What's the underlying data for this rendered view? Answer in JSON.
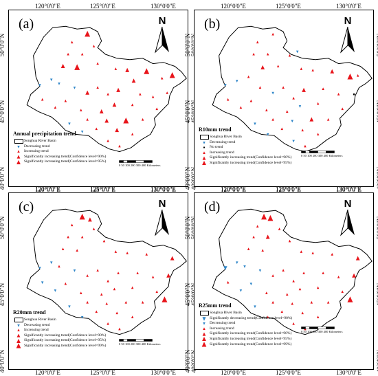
{
  "coords": {
    "top": [
      "120°0'0\"E",
      "125°0'0\"E",
      "130°0'0\"E"
    ],
    "bottom": [
      "120°0'0\"E",
      "125°0'0\"E",
      "130°0'0\"E"
    ],
    "lat": [
      "50°0'0\"N",
      "45°0'0\"N",
      "40°0'0\"N"
    ]
  },
  "north_letter": "N",
  "colors": {
    "increase": "#e8151b",
    "decrease": "#2f86c9",
    "basin_fill": "#ffffff",
    "basin_line": "#000000"
  },
  "scalebar": {
    "ticks": [
      "0",
      "50",
      "100",
      "200",
      "300",
      "400"
    ],
    "unit": "Kilometers"
  },
  "panels": [
    {
      "label": "(a)",
      "legend_title": "Annual precipitation trend",
      "legend": [
        {
          "symbol": "basin",
          "text": "Songhua River Basin"
        },
        {
          "symbol": "dec-small",
          "text": "Decreasing trend"
        },
        {
          "symbol": "inc-small",
          "text": "Increasing trend"
        },
        {
          "symbol": "inc-mid",
          "text": "Significantly increasing trend(Confidence level=90%)"
        },
        {
          "symbol": "inc-large",
          "text": "Significantly increasing trend(Confidence level=95%)"
        }
      ],
      "stations": [
        {
          "x": 125.3,
          "y": 50.8,
          "t": "i3"
        },
        {
          "x": 124.1,
          "y": 50.2,
          "t": "i1"
        },
        {
          "x": 125.8,
          "y": 49.9,
          "t": "i1"
        },
        {
          "x": 123.8,
          "y": 49.3,
          "t": "i1"
        },
        {
          "x": 124.9,
          "y": 49.3,
          "t": "i1"
        },
        {
          "x": 123.4,
          "y": 48.4,
          "t": "i2"
        },
        {
          "x": 124.5,
          "y": 48.3,
          "t": "i3"
        },
        {
          "x": 126.1,
          "y": 48.6,
          "t": "i1"
        },
        {
          "x": 127.5,
          "y": 48.2,
          "t": "i1"
        },
        {
          "x": 128.4,
          "y": 48.1,
          "t": "i2"
        },
        {
          "x": 129.9,
          "y": 48.0,
          "t": "i3"
        },
        {
          "x": 128.9,
          "y": 47.3,
          "t": "i2"
        },
        {
          "x": 131.1,
          "y": 47.5,
          "t": "i1"
        },
        {
          "x": 131.9,
          "y": 47.7,
          "t": "i3"
        },
        {
          "x": 122.5,
          "y": 47.4,
          "t": "d1"
        },
        {
          "x": 121.6,
          "y": 47.0,
          "t": "d1"
        },
        {
          "x": 123.1,
          "y": 47.1,
          "t": "d1"
        },
        {
          "x": 124.3,
          "y": 46.8,
          "t": "d1"
        },
        {
          "x": 126.1,
          "y": 46.8,
          "t": "i1"
        },
        {
          "x": 125.3,
          "y": 46.4,
          "t": "i2"
        },
        {
          "x": 126.9,
          "y": 46.3,
          "t": "i1"
        },
        {
          "x": 127.7,
          "y": 46.6,
          "t": "i2"
        },
        {
          "x": 129.4,
          "y": 46.3,
          "t": "i1"
        },
        {
          "x": 130.4,
          "y": 46.1,
          "t": "i1"
        },
        {
          "x": 131.5,
          "y": 46.4,
          "t": "i1"
        },
        {
          "x": 121.8,
          "y": 45.9,
          "t": "i1"
        },
        {
          "x": 123.6,
          "y": 45.8,
          "t": "i1"
        },
        {
          "x": 127.4,
          "y": 45.5,
          "t": "i2"
        },
        {
          "x": 128.8,
          "y": 45.5,
          "t": "i1"
        },
        {
          "x": 130.7,
          "y": 45.2,
          "t": "i1"
        },
        {
          "x": 124.8,
          "y": 45.1,
          "t": "i1"
        },
        {
          "x": 126.4,
          "y": 45.0,
          "t": "i2"
        },
        {
          "x": 122.8,
          "y": 45.3,
          "t": "i1"
        },
        {
          "x": 125.3,
          "y": 44.4,
          "t": "i1"
        },
        {
          "x": 126.8,
          "y": 44.3,
          "t": "i2"
        },
        {
          "x": 128.3,
          "y": 44.3,
          "t": "i3"
        },
        {
          "x": 129.6,
          "y": 44.4,
          "t": "i1"
        },
        {
          "x": 123.9,
          "y": 44.1,
          "t": "d1"
        },
        {
          "x": 126.0,
          "y": 43.7,
          "t": "i1"
        },
        {
          "x": 127.6,
          "y": 43.6,
          "t": "i2"
        },
        {
          "x": 124.9,
          "y": 43.5,
          "t": "d1"
        },
        {
          "x": 128.8,
          "y": 43.3,
          "t": "i1"
        },
        {
          "x": 126.9,
          "y": 42.8,
          "t": "i1"
        },
        {
          "x": 127.8,
          "y": 42.4,
          "t": "i1"
        }
      ]
    },
    {
      "label": "(b)",
      "legend_title": "R10mm trend",
      "legend": [
        {
          "symbol": "basin",
          "text": "Songhua River Basin"
        },
        {
          "symbol": "dec-small",
          "text": "Decreasing trend"
        },
        {
          "symbol": "none",
          "text": "No trend"
        },
        {
          "symbol": "inc-small",
          "text": "Increasing trend"
        },
        {
          "symbol": "inc-mid",
          "text": "Significantly increasing trend(Confidence level=90%)"
        },
        {
          "symbol": "inc-large",
          "text": "Significantly increasing trend(Confidence level=95%)"
        }
      ],
      "stations": [
        {
          "x": 125.3,
          "y": 50.8,
          "t": "i1"
        },
        {
          "x": 124.1,
          "y": 50.2,
          "t": "i1"
        },
        {
          "x": 127.2,
          "y": 49.5,
          "t": "d1"
        },
        {
          "x": 123.8,
          "y": 49.3,
          "t": "i1"
        },
        {
          "x": 124.9,
          "y": 49.3,
          "t": "i1"
        },
        {
          "x": 126.6,
          "y": 49.2,
          "t": "i1"
        },
        {
          "x": 124.5,
          "y": 48.3,
          "t": "i2"
        },
        {
          "x": 125.7,
          "y": 48.4,
          "t": "i1"
        },
        {
          "x": 127.5,
          "y": 48.2,
          "t": "i1"
        },
        {
          "x": 128.4,
          "y": 48.1,
          "t": "i1"
        },
        {
          "x": 129.9,
          "y": 48.0,
          "t": "i2"
        },
        {
          "x": 131.3,
          "y": 47.6,
          "t": "i3"
        },
        {
          "x": 131.9,
          "y": 47.7,
          "t": "i1"
        },
        {
          "x": 123.4,
          "y": 47.6,
          "t": "i1"
        },
        {
          "x": 121.6,
          "y": 47.0,
          "t": "d1"
        },
        {
          "x": 122.5,
          "y": 47.3,
          "t": "d1"
        },
        {
          "x": 124.3,
          "y": 46.8,
          "t": "i1"
        },
        {
          "x": 126.1,
          "y": 46.8,
          "t": "i1"
        },
        {
          "x": 127.7,
          "y": 46.6,
          "t": "i2"
        },
        {
          "x": 129.2,
          "y": 46.7,
          "t": "i1"
        },
        {
          "x": 130.4,
          "y": 46.3,
          "t": "i1"
        },
        {
          "x": 131.6,
          "y": 46.3,
          "t": "n"
        },
        {
          "x": 125.3,
          "y": 46.4,
          "t": "d1"
        },
        {
          "x": 126.9,
          "y": 46.0,
          "t": "i1"
        },
        {
          "x": 123.6,
          "y": 45.8,
          "t": "i1"
        },
        {
          "x": 121.8,
          "y": 45.9,
          "t": "i1"
        },
        {
          "x": 128.8,
          "y": 45.6,
          "t": "i1"
        },
        {
          "x": 127.4,
          "y": 45.4,
          "t": "d1"
        },
        {
          "x": 126.4,
          "y": 45.0,
          "t": "i1"
        },
        {
          "x": 124.8,
          "y": 45.1,
          "t": "i1"
        },
        {
          "x": 130.7,
          "y": 45.2,
          "t": "i1"
        },
        {
          "x": 122.8,
          "y": 45.3,
          "t": "i1"
        },
        {
          "x": 128.3,
          "y": 44.4,
          "t": "i2"
        },
        {
          "x": 125.3,
          "y": 44.4,
          "t": "i1"
        },
        {
          "x": 126.8,
          "y": 44.3,
          "t": "d1"
        },
        {
          "x": 129.6,
          "y": 44.4,
          "t": "i1"
        },
        {
          "x": 123.9,
          "y": 44.1,
          "t": "d1"
        },
        {
          "x": 127.6,
          "y": 43.6,
          "t": "i1"
        },
        {
          "x": 126.0,
          "y": 43.7,
          "t": "i1"
        },
        {
          "x": 128.8,
          "y": 43.3,
          "t": "i1"
        },
        {
          "x": 124.9,
          "y": 43.3,
          "t": "d1"
        },
        {
          "x": 126.9,
          "y": 42.8,
          "t": "d1"
        },
        {
          "x": 127.8,
          "y": 42.4,
          "t": "i1"
        }
      ]
    },
    {
      "label": "(c)",
      "legend_title": "R20mm trend",
      "legend": [
        {
          "symbol": "basin",
          "text": "Songhua River Basin"
        },
        {
          "symbol": "dec-small",
          "text": "Decreasing trend"
        },
        {
          "symbol": "inc-small",
          "text": "Increasing trend"
        },
        {
          "symbol": "inc-mid",
          "text": "Significantly increasing trend(Confidence level=90%)"
        },
        {
          "symbol": "inc-large",
          "text": "Significantly increasing trend(Confidence level=95%)"
        },
        {
          "symbol": "inc-xl",
          "text": "Significantly increasing trend(Confidence level=99%)"
        }
      ],
      "stations": [
        {
          "x": 124.9,
          "y": 50.8,
          "t": "i3"
        },
        {
          "x": 125.5,
          "y": 50.6,
          "t": "i2"
        },
        {
          "x": 124.1,
          "y": 50.2,
          "t": "i1"
        },
        {
          "x": 125.8,
          "y": 49.9,
          "t": "i1"
        },
        {
          "x": 123.8,
          "y": 49.3,
          "t": "i1"
        },
        {
          "x": 124.9,
          "y": 49.3,
          "t": "i1"
        },
        {
          "x": 126.6,
          "y": 49.0,
          "t": "i1"
        },
        {
          "x": 123.4,
          "y": 48.4,
          "t": "i1"
        },
        {
          "x": 124.5,
          "y": 48.3,
          "t": "i1"
        },
        {
          "x": 127.5,
          "y": 48.2,
          "t": "i1"
        },
        {
          "x": 128.4,
          "y": 48.1,
          "t": "i1"
        },
        {
          "x": 129.9,
          "y": 48.0,
          "t": "i1"
        },
        {
          "x": 131.9,
          "y": 47.7,
          "t": "i2"
        },
        {
          "x": 122.5,
          "y": 47.4,
          "t": "d1"
        },
        {
          "x": 121.6,
          "y": 47.0,
          "t": "d1"
        },
        {
          "x": 123.1,
          "y": 47.1,
          "t": "i1"
        },
        {
          "x": 124.3,
          "y": 46.8,
          "t": "d1"
        },
        {
          "x": 126.1,
          "y": 46.8,
          "t": "i1"
        },
        {
          "x": 127.7,
          "y": 46.6,
          "t": "i1"
        },
        {
          "x": 129.2,
          "y": 46.6,
          "t": "i1"
        },
        {
          "x": 130.4,
          "y": 46.3,
          "t": "i1"
        },
        {
          "x": 131.6,
          "y": 46.4,
          "t": "i2"
        },
        {
          "x": 125.3,
          "y": 46.4,
          "t": "i1"
        },
        {
          "x": 126.9,
          "y": 46.0,
          "t": "i1"
        },
        {
          "x": 123.6,
          "y": 45.8,
          "t": "i1"
        },
        {
          "x": 121.8,
          "y": 45.9,
          "t": "d1"
        },
        {
          "x": 128.8,
          "y": 45.5,
          "t": "i1"
        },
        {
          "x": 127.4,
          "y": 45.4,
          "t": "i1"
        },
        {
          "x": 130.7,
          "y": 45.2,
          "t": "i1"
        },
        {
          "x": 126.4,
          "y": 45.0,
          "t": "i1"
        },
        {
          "x": 124.8,
          "y": 45.1,
          "t": "i1"
        },
        {
          "x": 122.8,
          "y": 45.3,
          "t": "d1"
        },
        {
          "x": 128.3,
          "y": 44.4,
          "t": "i1"
        },
        {
          "x": 125.3,
          "y": 44.4,
          "t": "i1"
        },
        {
          "x": 126.8,
          "y": 44.3,
          "t": "i1"
        },
        {
          "x": 129.6,
          "y": 44.4,
          "t": "i1"
        },
        {
          "x": 131.3,
          "y": 44.6,
          "t": "i3"
        },
        {
          "x": 123.9,
          "y": 44.1,
          "t": "d1"
        },
        {
          "x": 127.6,
          "y": 43.6,
          "t": "i1"
        },
        {
          "x": 126.0,
          "y": 43.7,
          "t": "i1"
        },
        {
          "x": 128.8,
          "y": 43.3,
          "t": "i1"
        },
        {
          "x": 124.9,
          "y": 43.3,
          "t": "d1"
        },
        {
          "x": 126.9,
          "y": 42.8,
          "t": "i1"
        },
        {
          "x": 127.8,
          "y": 42.4,
          "t": "i1"
        }
      ]
    },
    {
      "label": "(d)",
      "legend_title": "R25mm trend",
      "legend": [
        {
          "symbol": "basin",
          "text": "Songhua River Basin"
        },
        {
          "symbol": "dec-sig",
          "text": "Significantly decreasing trend(Confidence level=90%)"
        },
        {
          "symbol": "dec-small",
          "text": "Decreasing trend"
        },
        {
          "symbol": "inc-small",
          "text": "Increasing trend"
        },
        {
          "symbol": "inc-mid",
          "text": "Significantly increasing trend(Confidence level=90%)"
        },
        {
          "symbol": "inc-large",
          "text": "Significantly increasing trend(Confidence level=95%)"
        },
        {
          "symbol": "inc-xl",
          "text": "Significantly increasing trend(Confidence level=99%)"
        }
      ],
      "stations": [
        {
          "x": 124.6,
          "y": 50.8,
          "t": "i3"
        },
        {
          "x": 125.1,
          "y": 50.7,
          "t": "i3"
        },
        {
          "x": 124.1,
          "y": 50.1,
          "t": "i1"
        },
        {
          "x": 125.8,
          "y": 49.9,
          "t": "i1"
        },
        {
          "x": 123.8,
          "y": 49.3,
          "t": "i1"
        },
        {
          "x": 124.9,
          "y": 49.3,
          "t": "i2"
        },
        {
          "x": 126.6,
          "y": 49.0,
          "t": "i1"
        },
        {
          "x": 123.4,
          "y": 48.4,
          "t": "i1"
        },
        {
          "x": 124.5,
          "y": 48.3,
          "t": "i1"
        },
        {
          "x": 127.5,
          "y": 48.2,
          "t": "i1"
        },
        {
          "x": 128.4,
          "y": 48.1,
          "t": "i1"
        },
        {
          "x": 129.9,
          "y": 48.0,
          "t": "i1"
        },
        {
          "x": 131.9,
          "y": 47.7,
          "t": "i2"
        },
        {
          "x": 122.5,
          "y": 47.4,
          "t": "d1"
        },
        {
          "x": 121.6,
          "y": 47.0,
          "t": "d2"
        },
        {
          "x": 123.1,
          "y": 47.1,
          "t": "d1"
        },
        {
          "x": 124.3,
          "y": 46.8,
          "t": "d1"
        },
        {
          "x": 126.1,
          "y": 46.8,
          "t": "i1"
        },
        {
          "x": 127.7,
          "y": 46.6,
          "t": "i1"
        },
        {
          "x": 129.2,
          "y": 46.6,
          "t": "i1"
        },
        {
          "x": 130.4,
          "y": 46.3,
          "t": "i1"
        },
        {
          "x": 131.6,
          "y": 46.4,
          "t": "i2"
        },
        {
          "x": 125.3,
          "y": 46.4,
          "t": "i1"
        },
        {
          "x": 126.9,
          "y": 46.0,
          "t": "i1"
        },
        {
          "x": 123.6,
          "y": 45.8,
          "t": "d1"
        },
        {
          "x": 121.8,
          "y": 45.9,
          "t": "i1"
        },
        {
          "x": 128.8,
          "y": 45.5,
          "t": "i1"
        },
        {
          "x": 127.4,
          "y": 45.4,
          "t": "i1"
        },
        {
          "x": 130.7,
          "y": 45.2,
          "t": "i1"
        },
        {
          "x": 126.4,
          "y": 45.0,
          "t": "i1"
        },
        {
          "x": 124.8,
          "y": 45.1,
          "t": "i1"
        },
        {
          "x": 122.8,
          "y": 45.3,
          "t": "d1"
        },
        {
          "x": 128.3,
          "y": 44.4,
          "t": "i1"
        },
        {
          "x": 125.3,
          "y": 44.4,
          "t": "i1"
        },
        {
          "x": 126.8,
          "y": 44.3,
          "t": "i1"
        },
        {
          "x": 129.6,
          "y": 44.4,
          "t": "i1"
        },
        {
          "x": 131.3,
          "y": 44.6,
          "t": "i3"
        },
        {
          "x": 123.9,
          "y": 44.1,
          "t": "d1"
        },
        {
          "x": 127.6,
          "y": 43.6,
          "t": "i1"
        },
        {
          "x": 126.0,
          "y": 43.7,
          "t": "i1"
        },
        {
          "x": 128.8,
          "y": 43.3,
          "t": "i1"
        },
        {
          "x": 124.9,
          "y": 43.3,
          "t": "i1"
        },
        {
          "x": 126.9,
          "y": 42.8,
          "t": "i1"
        },
        {
          "x": 127.8,
          "y": 42.4,
          "t": "i1"
        }
      ]
    }
  ]
}
